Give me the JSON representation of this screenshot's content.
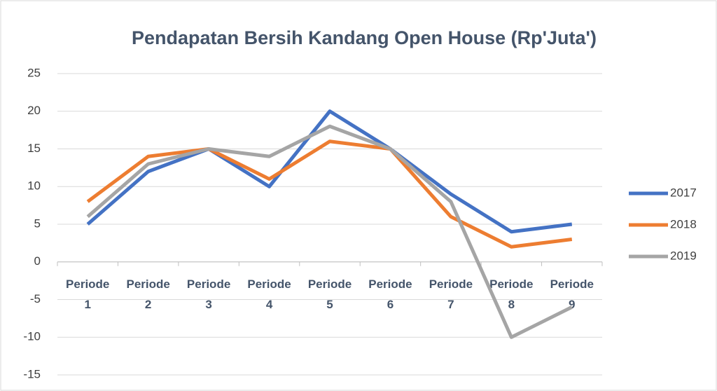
{
  "chart_data": {
    "type": "line",
    "title": "Pendapatan Bersih Kandang Open House (Rp'Juta')",
    "categories": [
      "Periode 1",
      "Periode 2",
      "Periode 3",
      "Periode 4",
      "Periode 5",
      "Periode 6",
      "Periode 7",
      "Periode 8",
      "Periode 9"
    ],
    "series": [
      {
        "name": "2017",
        "color": "#4472c4",
        "values": [
          5,
          12,
          15,
          10,
          20,
          15,
          9,
          4,
          5
        ]
      },
      {
        "name": "2018",
        "color": "#ed7d31",
        "values": [
          8,
          14,
          15,
          11,
          16,
          15,
          6,
          2,
          3
        ]
      },
      {
        "name": "2019",
        "color": "#a5a5a5",
        "values": [
          6,
          13,
          15,
          14,
          18,
          15,
          8,
          -10,
          -6
        ]
      }
    ],
    "ylim": [
      -15,
      25
    ],
    "yticks": [
      -15,
      -10,
      -5,
      0,
      5,
      10,
      15,
      20,
      25
    ],
    "grid": true,
    "legend": "right"
  }
}
